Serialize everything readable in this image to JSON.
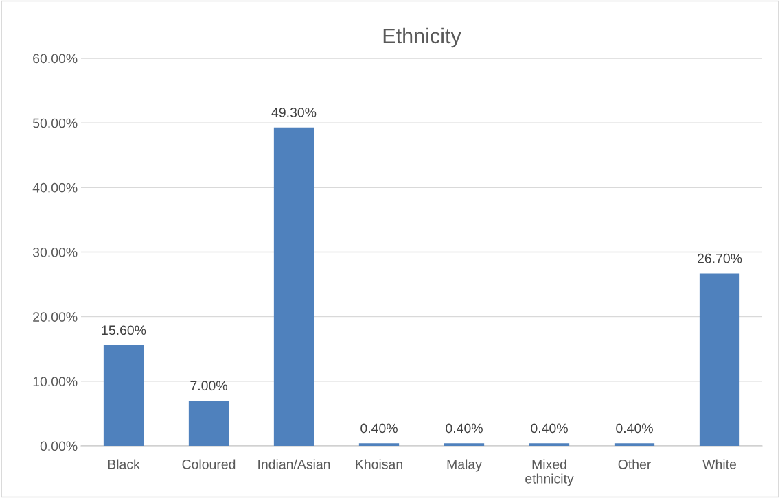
{
  "chart_data": {
    "type": "bar",
    "title": "Ethnicity",
    "categories": [
      "Black",
      "Coloured",
      "Indian/Asian",
      "Khoisan",
      "Malay",
      "Mixed\nethnicity",
      "Other",
      "White"
    ],
    "values": [
      15.6,
      7.0,
      49.3,
      0.4,
      0.4,
      0.4,
      0.4,
      26.7
    ],
    "value_labels": [
      "15.60%",
      "7.00%",
      "49.30%",
      "0.40%",
      "0.40%",
      "0.40%",
      "0.40%",
      "26.70%"
    ],
    "color": "#4f81bd",
    "ylim": [
      0,
      60
    ],
    "yticks": [
      {
        "value": 0,
        "label": "0.00%"
      },
      {
        "value": 10,
        "label": "10.00%"
      },
      {
        "value": 20,
        "label": "20.00%"
      },
      {
        "value": 30,
        "label": "30.00%"
      },
      {
        "value": 40,
        "label": "40.00%"
      },
      {
        "value": 50,
        "label": "50.00%"
      },
      {
        "value": 60,
        "label": "60.00%"
      }
    ],
    "grid": "y",
    "legend": false
  }
}
